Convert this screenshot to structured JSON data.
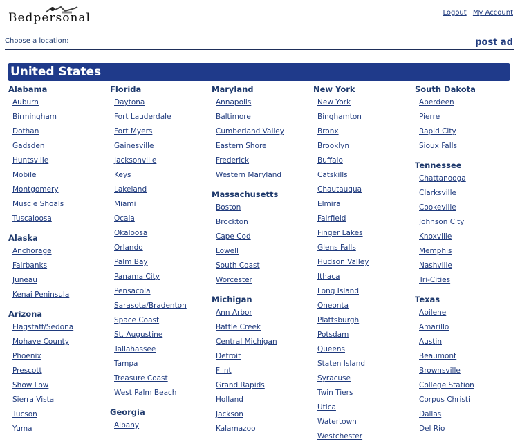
{
  "header": {
    "logo_text": "Bedpersonal",
    "logout": "Logout",
    "my_account": "My Account"
  },
  "toolbar": {
    "choose_location": "Choose a location:",
    "post_ad": "post ad"
  },
  "country": "United States",
  "colors": {
    "accent": "#1f3a8a",
    "link": "#1f3a7d"
  },
  "columns": [
    [
      {
        "state": "Alabama",
        "cities": [
          "Auburn",
          "Birmingham",
          "Dothan",
          "Gadsden",
          "Huntsville",
          "Mobile",
          "Montgomery",
          "Muscle Shoals",
          "Tuscaloosa"
        ]
      },
      {
        "state": "Alaska",
        "cities": [
          "Anchorage",
          "Fairbanks",
          "Juneau",
          "Kenai Peninsula"
        ]
      },
      {
        "state": "Arizona",
        "cities": [
          "Flagstaff/Sedona",
          "Mohave County",
          "Phoenix",
          "Prescott",
          "Show Low",
          "Sierra Vista",
          "Tucson",
          "Yuma"
        ]
      }
    ],
    [
      {
        "state": "Florida",
        "cities": [
          "Daytona",
          "Fort Lauderdale",
          "Fort Myers",
          "Gainesville",
          "Jacksonville",
          "Keys",
          "Lakeland",
          "Miami",
          "Ocala",
          "Okaloosa",
          "Orlando",
          "Palm Bay",
          "Panama City",
          "Pensacola",
          "Sarasota/Bradenton",
          "Space Coast",
          "St. Augustine",
          "Tallahassee",
          "Tampa",
          "Treasure Coast",
          "West Palm Beach"
        ]
      },
      {
        "state": "Georgia",
        "cities": [
          "Albany"
        ]
      }
    ],
    [
      {
        "state": "Maryland",
        "cities": [
          "Annapolis",
          "Baltimore",
          "Cumberland Valley",
          "Eastern Shore",
          "Frederick",
          "Western Maryland"
        ]
      },
      {
        "state": "Massachusetts",
        "cities": [
          "Boston",
          "Brockton",
          "Cape Cod",
          "Lowell",
          "South Coast",
          "Worcester"
        ]
      },
      {
        "state": "Michigan",
        "cities": [
          "Ann Arbor",
          "Battle Creek",
          "Central Michigan",
          "Detroit",
          "Flint",
          "Grand Rapids",
          "Holland",
          "Jackson",
          "Kalamazoo"
        ]
      }
    ],
    [
      {
        "state": "New York",
        "cities": [
          "New York",
          "Binghamton",
          "Bronx",
          "Brooklyn",
          "Buffalo",
          "Catskills",
          "Chautauqua",
          "Elmira",
          "Fairfield",
          "Finger Lakes",
          "Glens Falls",
          "Hudson Valley",
          "Ithaca",
          "Long Island",
          "Oneonta",
          "Plattsburgh",
          "Potsdam",
          "Queens",
          "Staten Island",
          "Syracuse",
          "Twin Tiers",
          "Utica",
          "Watertown",
          "Westchester"
        ]
      }
    ],
    [
      {
        "state": "South Dakota",
        "cities": [
          "Aberdeen",
          "Pierre",
          "Rapid City",
          "Sioux Falls"
        ]
      },
      {
        "state": "Tennessee",
        "cities": [
          "Chattanooga",
          "Clarksville",
          "Cookeville",
          "Johnson City",
          "Knoxville",
          "Memphis",
          "Nashville",
          "Tri-Cities"
        ]
      },
      {
        "state": "Texas",
        "cities": [
          "Abilene",
          "Amarillo",
          "Austin",
          "Beaumont",
          "Brownsville",
          "College Station",
          "Corpus Christi",
          "Dallas",
          "Del Rio"
        ]
      }
    ]
  ]
}
